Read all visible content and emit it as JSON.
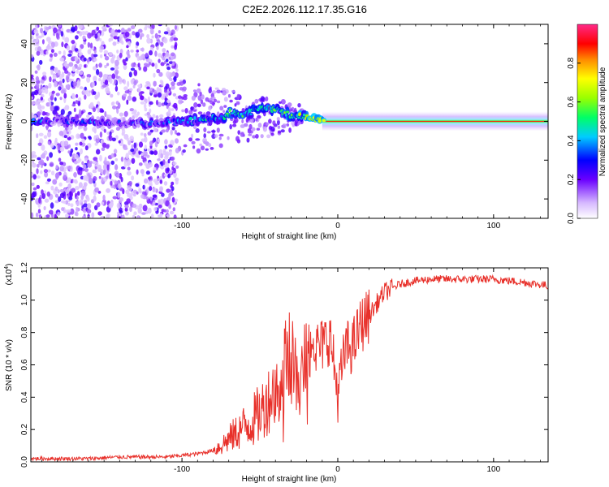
{
  "page": {
    "title": "C2E2.2026.112.17.35.G16"
  },
  "chart_data": [
    {
      "type": "heatmap",
      "xlabel": "Height of straight line (km)",
      "ylabel": "Frequency (Hz)",
      "xlim": [
        -197,
        135
      ],
      "ylim": [
        -50,
        50
      ],
      "xticks": [
        -100,
        0,
        100
      ],
      "yticks": [
        -40,
        -20,
        0,
        20,
        40
      ],
      "colorbar": {
        "label": "Normalized spectral amplitude",
        "range": [
          0.0,
          1.0
        ],
        "ticks": [
          0.0,
          0.2,
          0.4,
          0.6,
          0.8
        ]
      },
      "ridge": [
        {
          "x": -195,
          "freq": 0,
          "amp": 0.4
        },
        {
          "x": -180,
          "freq": 0,
          "amp": 0.2
        },
        {
          "x": -160,
          "freq": 0,
          "amp": 0.3
        },
        {
          "x": -140,
          "freq": -1,
          "amp": 0.25
        },
        {
          "x": -120,
          "freq": -1,
          "amp": 0.3
        },
        {
          "x": -100,
          "freq": 0,
          "amp": 0.35
        },
        {
          "x": -85,
          "freq": 1,
          "amp": 0.4
        },
        {
          "x": -75,
          "freq": 2,
          "amp": 0.45
        },
        {
          "x": -68,
          "freq": 5,
          "amp": 0.5
        },
        {
          "x": -60,
          "freq": 3,
          "amp": 0.45
        },
        {
          "x": -50,
          "freq": 7,
          "amp": 0.5
        },
        {
          "x": -40,
          "freq": 6,
          "amp": 0.5
        },
        {
          "x": -30,
          "freq": 3,
          "amp": 0.55
        },
        {
          "x": -20,
          "freq": 2,
          "amp": 0.6
        },
        {
          "x": -10,
          "freq": 0,
          "amp": 0.7
        },
        {
          "x": 0,
          "freq": 0,
          "amp": 0.8
        },
        {
          "x": 50,
          "freq": 0,
          "amp": 0.85
        },
        {
          "x": 100,
          "freq": 0,
          "amp": 0.9
        },
        {
          "x": 135,
          "freq": 0,
          "amp": 0.85
        }
      ]
    },
    {
      "type": "line",
      "xlabel": "Height of straight line (km)",
      "ylabel": "SNR (10 * v/v)",
      "multiplier_label": "(x10",
      "multiplier_exp": "4",
      "multiplier_close": ")",
      "xlim": [
        -197,
        135
      ],
      "ylim": [
        0.0,
        1.2
      ],
      "xticks": [
        -100,
        0,
        100
      ],
      "yticks": [
        0.0,
        0.2,
        0.4,
        0.6,
        0.8,
        1.0,
        1.2
      ],
      "series": [
        {
          "name": "SNR",
          "color": "#e8302a",
          "x": [
            -197,
            -180,
            -160,
            -140,
            -120,
            -110,
            -100,
            -90,
            -80,
            -75,
            -70,
            -65,
            -60,
            -55,
            -50,
            -45,
            -40,
            -35,
            -30,
            -25,
            -20,
            -15,
            -10,
            -5,
            0,
            5,
            10,
            15,
            20,
            25,
            30,
            40,
            50,
            60,
            70,
            80,
            90,
            100,
            110,
            120,
            135
          ],
          "values": [
            0.02,
            0.02,
            0.02,
            0.03,
            0.03,
            0.03,
            0.04,
            0.05,
            0.07,
            0.1,
            0.14,
            0.18,
            0.22,
            0.25,
            0.3,
            0.38,
            0.45,
            0.55,
            0.62,
            0.52,
            0.62,
            0.7,
            0.72,
            0.78,
            0.42,
            0.7,
            0.72,
            0.85,
            0.9,
            0.98,
            1.05,
            1.1,
            1.12,
            1.13,
            1.13,
            1.13,
            1.13,
            1.13,
            1.12,
            1.11,
            1.09
          ]
        }
      ]
    }
  ]
}
